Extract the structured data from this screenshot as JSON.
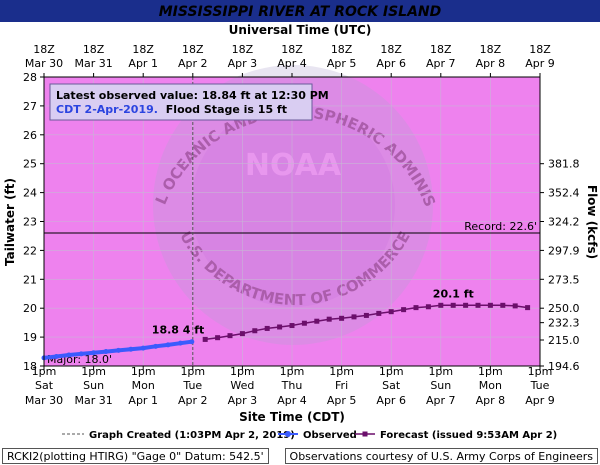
{
  "chart_data": {
    "type": "line",
    "title": "MISSISSIPPI RIVER AT ROCK ISLAND",
    "top_axis_title": "Universal Time (UTC)",
    "xlabel": "Site Time (CDT)",
    "ylabel": "Tailwater (ft)",
    "y2label": "Flow (kcfs)",
    "ylim": [
      18,
      28
    ],
    "yticks": [
      18,
      19,
      20,
      21,
      22,
      23,
      24,
      25,
      26,
      27,
      28
    ],
    "y2_ticks": [
      {
        "stage": 18.0,
        "label": "194.6"
      },
      {
        "stage": 18.9,
        "label": "215.0"
      },
      {
        "stage": 19.5,
        "label": "232.3"
      },
      {
        "stage": 20.0,
        "label": "250.0"
      },
      {
        "stage": 21.0,
        "label": "273.5"
      },
      {
        "stage": 22.0,
        "label": "297.9"
      },
      {
        "stage": 23.0,
        "label": "324.2"
      },
      {
        "stage": 24.0,
        "label": "352.4"
      },
      {
        "stage": 25.0,
        "label": "381.8"
      }
    ],
    "top_ticks": [
      {
        "line1": "18Z",
        "line2": "Mar 30"
      },
      {
        "line1": "18Z",
        "line2": "Mar 31"
      },
      {
        "line1": "18Z",
        "line2": "Apr 1"
      },
      {
        "line1": "18Z",
        "line2": "Apr 2"
      },
      {
        "line1": "18Z",
        "line2": "Apr 3"
      },
      {
        "line1": "18Z",
        "line2": "Apr 4"
      },
      {
        "line1": "18Z",
        "line2": "Apr 5"
      },
      {
        "line1": "18Z",
        "line2": "Apr 6"
      },
      {
        "line1": "18Z",
        "line2": "Apr 7"
      },
      {
        "line1": "18Z",
        "line2": "Apr 8"
      },
      {
        "line1": "18Z",
        "line2": "Apr 9"
      }
    ],
    "bottom_ticks": [
      {
        "time": "1pm",
        "day": "Sat",
        "date": "Mar 30"
      },
      {
        "time": "1pm",
        "day": "Sun",
        "date": "Mar 31"
      },
      {
        "time": "1pm",
        "day": "Mon",
        "date": "Apr 1"
      },
      {
        "time": "1pm",
        "day": "Tue",
        "date": "Apr 2"
      },
      {
        "time": "1pm",
        "day": "Wed",
        "date": "Apr 3"
      },
      {
        "time": "1pm",
        "day": "Thu",
        "date": "Apr 4"
      },
      {
        "time": "1pm",
        "day": "Fri",
        "date": "Apr 5"
      },
      {
        "time": "1pm",
        "day": "Sat",
        "date": "Apr 6"
      },
      {
        "time": "1pm",
        "day": "Sun",
        "date": "Apr 7"
      },
      {
        "time": "1pm",
        "day": "Mon",
        "date": "Apr 8"
      },
      {
        "time": "1pm",
        "day": "Tue",
        "date": "Apr 9"
      }
    ],
    "categories_note": "x values are days after 1pm Sat Mar 30 CDT",
    "xlim": [
      0,
      10
    ],
    "flood_categories": [
      {
        "name": "Major",
        "label": "Major: 18.0'",
        "stage": 18.0,
        "color": "#f87171"
      },
      {
        "name": "Record",
        "label": "Record: 22.6'",
        "stage": 22.6
      }
    ],
    "band_color": "#ee82ee",
    "major_color": "#f87171",
    "series": [
      {
        "name": "Observed",
        "color": "#3b5bfd",
        "x": [
          0.0,
          0.25,
          0.5,
          0.75,
          1.0,
          1.25,
          1.5,
          1.75,
          2.0,
          2.25,
          2.5,
          2.75,
          2.98
        ],
        "y": [
          18.28,
          18.33,
          18.38,
          18.42,
          18.46,
          18.5,
          18.54,
          18.58,
          18.62,
          18.68,
          18.73,
          18.79,
          18.84
        ]
      },
      {
        "name": "Forecast (issued 9:53AM Apr 2)",
        "color": "#6b0f6b",
        "x": [
          3.25,
          3.5,
          3.75,
          4.0,
          4.25,
          4.5,
          4.75,
          5.0,
          5.25,
          5.5,
          5.75,
          6.0,
          6.25,
          6.5,
          6.75,
          7.0,
          7.25,
          7.5,
          7.75,
          8.0,
          8.25,
          8.5,
          8.75,
          9.0,
          9.25,
          9.5,
          9.75
        ],
        "y": [
          18.92,
          18.98,
          19.05,
          19.12,
          19.22,
          19.3,
          19.35,
          19.4,
          19.48,
          19.55,
          19.62,
          19.65,
          19.7,
          19.75,
          19.82,
          19.88,
          19.95,
          20.02,
          20.05,
          20.1,
          20.1,
          20.1,
          20.1,
          20.1,
          20.1,
          20.08,
          20.02
        ]
      }
    ],
    "graph_created_x": 3.0,
    "annotations": {
      "observed_peak": "18.8 4 ft",
      "forecast_peak": "20.1 ft",
      "latest_line1": "Latest observed value: 18.84 ft at 12:30 PM",
      "latest_line2a": "CDT 2-Apr-2019.",
      "latest_line2b": "Flood Stage is 15 ft"
    },
    "legend": {
      "created": "Graph Created (1:03PM Apr 2, 2019)",
      "observed": "Observed",
      "forecast": "Forecast (issued 9:53AM Apr 2)"
    },
    "watermark": {
      "top": "NATIONAL OCEANIC AND ATMOSPHERIC ADMINISTRATION",
      "center": "NOAA",
      "bottom": "U.S. DEPARTMENT OF COMMERCE"
    }
  },
  "footer": {
    "left": "RCKI2(plotting HTIRG) \"Gage 0\" Datum: 542.5'",
    "right": "Observations courtesy of U.S. Army Corps of Engineers"
  }
}
